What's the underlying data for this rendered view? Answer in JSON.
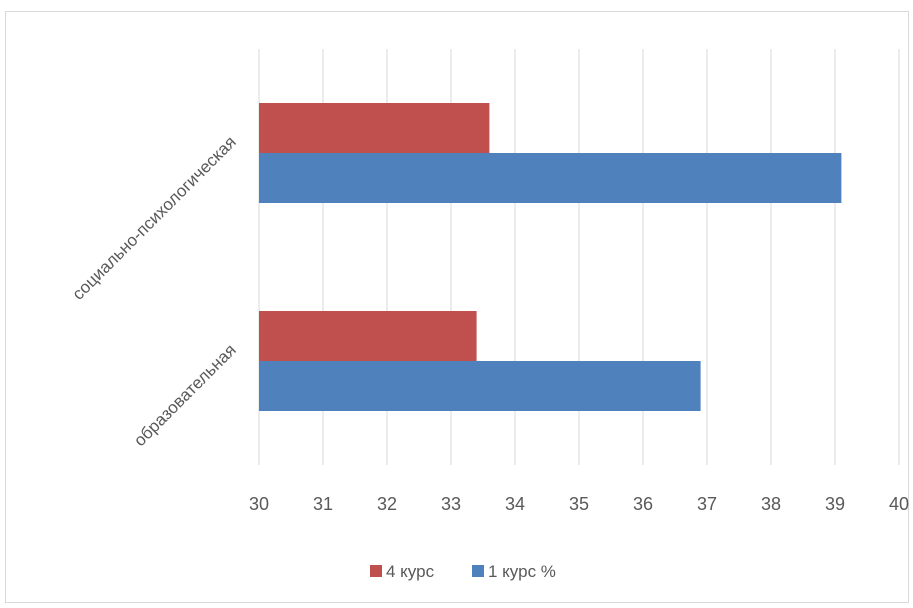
{
  "chart_data": {
    "type": "bar",
    "orientation": "horizontal",
    "categories": [
      "образовательная",
      "социально-психологическая"
    ],
    "series": [
      {
        "name": "1 курс %",
        "values": [
          36.9,
          39.1
        ],
        "color": "#4f81bd"
      },
      {
        "name": "4 курс",
        "values": [
          33.4,
          33.6
        ],
        "color": "#c0504d"
      }
    ],
    "xlim": [
      30,
      40
    ],
    "xticks": [
      "30",
      "31",
      "32",
      "33",
      "34",
      "35",
      "36",
      "37",
      "38",
      "39",
      "40"
    ],
    "grid": true,
    "legend_position": "bottom",
    "legend": [
      {
        "name": "4 курс",
        "color": "#c0504d"
      },
      {
        "name": "1 курс %",
        "color": "#4f81bd"
      }
    ]
  }
}
